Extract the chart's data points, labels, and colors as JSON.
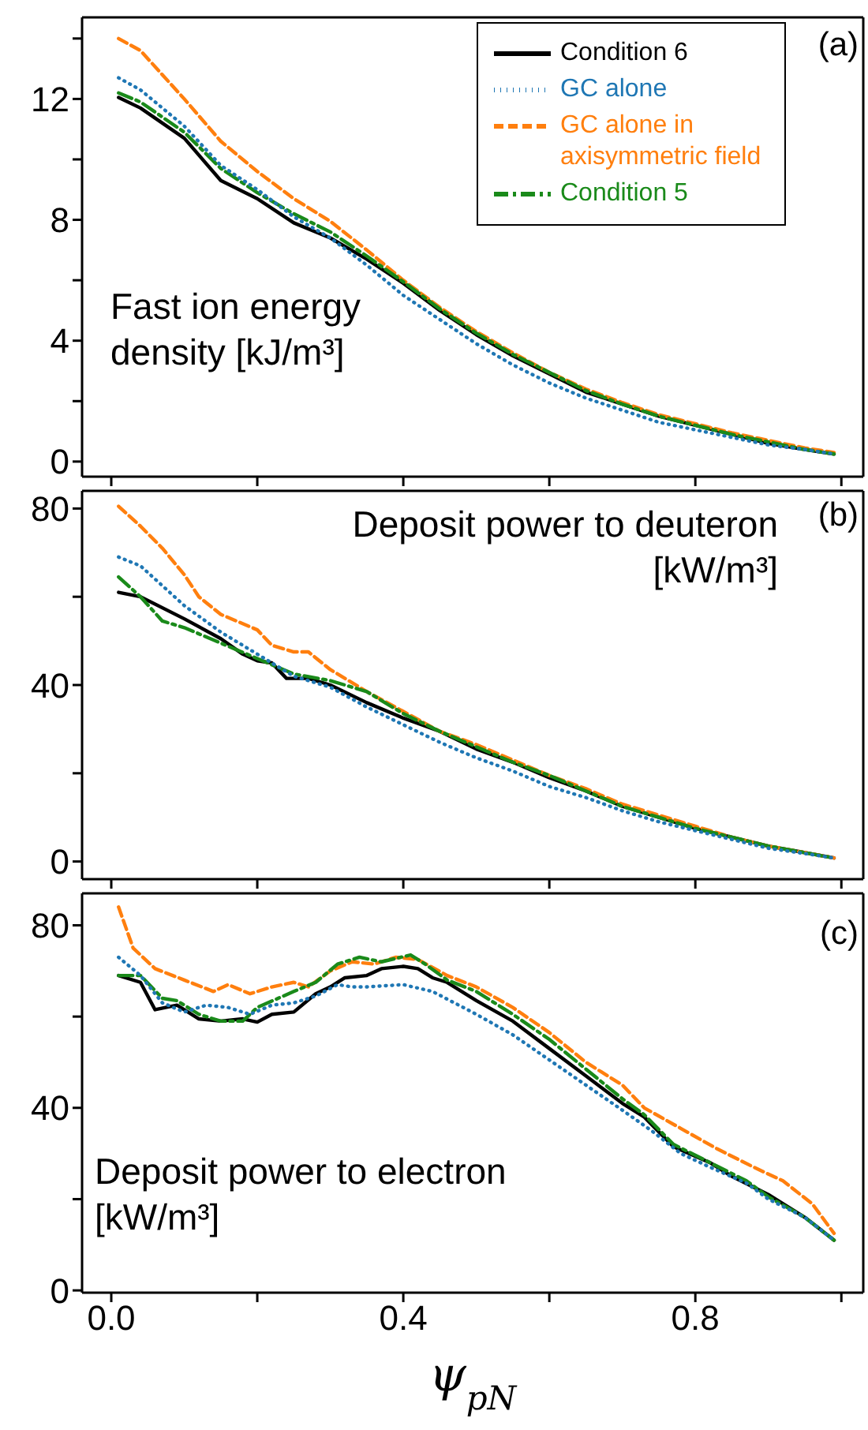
{
  "chart_data": [
    {
      "type": "line",
      "annotations": [
        "(a)",
        "Fast ion energy density [kJ/m³]"
      ],
      "xlim": [
        -0.04,
        1.03
      ],
      "ylim": [
        -0.5,
        14.7
      ],
      "xticks": [
        0,
        0.2,
        0.4,
        0.6,
        0.8,
        1.0
      ],
      "yticks": [
        0,
        {
          "value": 2,
          "label": null
        },
        4,
        {
          "value": 6,
          "label": null
        },
        8,
        {
          "value": 10,
          "label": null
        },
        12,
        {
          "value": 14,
          "label": null
        }
      ],
      "tick_labels": "y",
      "legend": "top right",
      "marker": "none",
      "x": [
        0.01,
        0.04,
        0.1,
        0.15,
        0.2,
        0.25,
        0.3,
        0.35,
        0.4,
        0.45,
        0.5,
        0.55,
        0.6,
        0.65,
        0.7,
        0.75,
        0.8,
        0.85,
        0.9,
        0.95,
        0.99
      ],
      "series": [
        {
          "name": "Condition 6",
          "color": "#000000",
          "line_style": "solid",
          "values": [
            12.05,
            11.7,
            10.7,
            9.3,
            8.7,
            7.9,
            7.4,
            6.7,
            5.9,
            5.0,
            4.2,
            3.5,
            2.9,
            2.3,
            1.9,
            1.5,
            1.2,
            0.9,
            0.6,
            0.4,
            0.25
          ]
        },
        {
          "name": "GC alone",
          "color": "#1f77b4",
          "line_style": "dotted",
          "values": [
            12.7,
            12.3,
            11.1,
            9.8,
            9.0,
            8.1,
            7.4,
            6.5,
            5.5,
            4.7,
            3.9,
            3.2,
            2.6,
            2.1,
            1.7,
            1.3,
            1.05,
            0.8,
            0.55,
            0.4,
            0.25
          ]
        },
        {
          "name": "GC alone in axisymmetric field",
          "color": "#ff7f0e",
          "line_style": "dashed",
          "values": [
            14.0,
            13.6,
            12.0,
            10.6,
            9.6,
            8.7,
            7.95,
            7.0,
            6.0,
            5.1,
            4.3,
            3.6,
            2.95,
            2.4,
            1.95,
            1.55,
            1.25,
            0.95,
            0.7,
            0.45,
            0.3
          ]
        },
        {
          "name": "Condition 5",
          "color": "#1a8a1a",
          "line_style": "dashdot",
          "values": [
            12.2,
            11.9,
            10.9,
            9.7,
            8.9,
            8.2,
            7.6,
            6.8,
            5.95,
            5.05,
            4.25,
            3.55,
            2.95,
            2.35,
            1.9,
            1.5,
            1.2,
            0.9,
            0.65,
            0.4,
            0.25
          ]
        }
      ]
    },
    {
      "type": "line",
      "annotations": [
        "(b)",
        "Deposit power to deuteron [kW/m³]"
      ],
      "xlim": [
        -0.04,
        1.03
      ],
      "ylim": [
        -4,
        84
      ],
      "xticks": [
        0,
        0.2,
        0.4,
        0.6,
        0.8,
        1.0
      ],
      "yticks": [
        0,
        {
          "value": 20,
          "label": null
        },
        40,
        {
          "value": 60,
          "label": null
        },
        80
      ],
      "tick_labels": "y",
      "marker": "none",
      "series": [
        {
          "color": "#000000",
          "line_style": "solid",
          "x": [
            0.01,
            0.04,
            0.1,
            0.15,
            0.18,
            0.2,
            0.22,
            0.24,
            0.27,
            0.3,
            0.35,
            0.4,
            0.45,
            0.5,
            0.55,
            0.6,
            0.65,
            0.7,
            0.75,
            0.8,
            0.85,
            0.9,
            0.95,
            0.99
          ],
          "values": [
            61,
            60,
            55,
            50.5,
            47,
            45.5,
            45,
            41.5,
            41.5,
            40,
            36,
            32.5,
            29.5,
            25.5,
            22.5,
            19,
            16,
            12.5,
            10,
            7.5,
            5.5,
            3.5,
            2,
            0.8
          ]
        },
        {
          "color": "#1f77b4",
          "line_style": "dotted",
          "x": [
            0.01,
            0.04,
            0.1,
            0.15,
            0.2,
            0.25,
            0.3,
            0.35,
            0.4,
            0.45,
            0.5,
            0.55,
            0.6,
            0.65,
            0.7,
            0.75,
            0.8,
            0.85,
            0.9,
            0.95,
            0.99
          ],
          "values": [
            69,
            67,
            58,
            52,
            47,
            42,
            39.5,
            35,
            31,
            27,
            23.5,
            20.5,
            17,
            14.5,
            11.5,
            9,
            7,
            5,
            3,
            1.8,
            0.8
          ]
        },
        {
          "color": "#ff7f0e",
          "line_style": "dashed",
          "x": [
            0.01,
            0.04,
            0.07,
            0.1,
            0.12,
            0.15,
            0.2,
            0.22,
            0.25,
            0.27,
            0.3,
            0.35,
            0.4,
            0.45,
            0.5,
            0.55,
            0.6,
            0.65,
            0.7,
            0.75,
            0.8,
            0.85,
            0.9,
            0.95,
            0.99
          ],
          "values": [
            80.5,
            76,
            71,
            65,
            60,
            56,
            52.5,
            49,
            47.5,
            47.5,
            43.5,
            38.5,
            34,
            29.5,
            26.5,
            23,
            19.5,
            16.5,
            13,
            10.5,
            8,
            5.5,
            3.5,
            2,
            0.8
          ]
        },
        {
          "color": "#1a8a1a",
          "line_style": "dashdot",
          "x": [
            0.01,
            0.04,
            0.07,
            0.1,
            0.15,
            0.2,
            0.25,
            0.3,
            0.35,
            0.4,
            0.45,
            0.5,
            0.55,
            0.6,
            0.65,
            0.7,
            0.75,
            0.8,
            0.85,
            0.9,
            0.95,
            0.99
          ],
          "values": [
            64.5,
            60,
            54.5,
            53,
            49.5,
            46,
            42.5,
            41,
            38.5,
            33.5,
            29.5,
            26,
            22.5,
            19.5,
            16,
            12.5,
            10,
            7.5,
            5.5,
            3.5,
            2,
            0.8
          ]
        }
      ]
    },
    {
      "type": "line",
      "annotations": [
        "(c)",
        "Deposit power to electron [kW/m³]"
      ],
      "xlabel": "ψ$_{pN}$",
      "xlim": [
        -0.04,
        1.03
      ],
      "ylim": [
        -0.5,
        87
      ],
      "xticks": [
        {
          "value": 0,
          "label": "0.0"
        },
        {
          "value": 0.2,
          "label": null
        },
        {
          "value": 0.4,
          "label": "0.4"
        },
        {
          "value": 0.6,
          "label": null
        },
        {
          "value": 0.8,
          "label": "0.8"
        },
        {
          "value": 1.0,
          "label": null
        }
      ],
      "yticks": [
        0,
        {
          "value": 20,
          "label": null
        },
        40,
        {
          "value": 60,
          "label": null
        },
        80
      ],
      "marker": "none",
      "series": [
        {
          "color": "#000000",
          "line_style": "solid",
          "x": [
            0.01,
            0.04,
            0.06,
            0.09,
            0.12,
            0.15,
            0.18,
            0.2,
            0.22,
            0.25,
            0.28,
            0.3,
            0.32,
            0.35,
            0.37,
            0.4,
            0.42,
            0.44,
            0.46,
            0.5,
            0.55,
            0.6,
            0.65,
            0.7,
            0.73,
            0.77,
            0.82,
            0.85,
            0.9,
            0.95,
            0.99
          ],
          "values": [
            69,
            67.5,
            61.5,
            62.5,
            59.5,
            59,
            59.5,
            58.8,
            60.5,
            61,
            65,
            66.5,
            68.5,
            69,
            70.5,
            71,
            70.5,
            68.5,
            67.5,
            63.5,
            59,
            53,
            47,
            41,
            38,
            31.5,
            28,
            25,
            21,
            16,
            11
          ]
        },
        {
          "color": "#1f77b4",
          "line_style": "dotted",
          "x": [
            0.01,
            0.04,
            0.07,
            0.1,
            0.13,
            0.16,
            0.19,
            0.22,
            0.25,
            0.28,
            0.31,
            0.33,
            0.35,
            0.4,
            0.44,
            0.47,
            0.5,
            0.55,
            0.6,
            0.65,
            0.7,
            0.74,
            0.78,
            0.82,
            0.87,
            0.9,
            0.95,
            0.99
          ],
          "values": [
            73,
            69,
            63,
            61,
            62.5,
            62,
            60.5,
            62.5,
            63,
            64.5,
            67,
            66.5,
            66.5,
            67,
            65.5,
            63,
            60.5,
            56,
            50.5,
            45,
            39.5,
            35,
            30,
            27,
            23.5,
            20,
            16,
            11
          ]
        },
        {
          "color": "#ff7f0e",
          "line_style": "dashed",
          "x": [
            0.01,
            0.03,
            0.06,
            0.1,
            0.14,
            0.16,
            0.19,
            0.22,
            0.25,
            0.27,
            0.3,
            0.33,
            0.36,
            0.39,
            0.42,
            0.46,
            0.5,
            0.55,
            0.6,
            0.65,
            0.7,
            0.73,
            0.78,
            0.83,
            0.88,
            0.92,
            0.96,
            0.99
          ],
          "values": [
            84,
            75,
            70.5,
            68,
            65.5,
            67,
            65,
            66.5,
            67.5,
            66.5,
            70,
            72,
            71.5,
            73,
            72.5,
            69,
            66.5,
            62,
            56.5,
            50,
            45,
            40,
            35.5,
            31,
            27,
            24,
            19,
            12.5
          ]
        },
        {
          "color": "#1a8a1a",
          "line_style": "dashdot",
          "x": [
            0.01,
            0.04,
            0.07,
            0.09,
            0.12,
            0.15,
            0.18,
            0.2,
            0.25,
            0.28,
            0.31,
            0.34,
            0.37,
            0.41,
            0.43,
            0.46,
            0.5,
            0.55,
            0.6,
            0.65,
            0.7,
            0.73,
            0.77,
            0.82,
            0.87,
            0.9,
            0.95,
            0.99
          ],
          "values": [
            69,
            69,
            64,
            63.5,
            60.5,
            59,
            59,
            62,
            65.5,
            67.5,
            71.5,
            73,
            72,
            73.5,
            71.5,
            68,
            65.5,
            60.5,
            55,
            48.5,
            42,
            38.5,
            32,
            28,
            24,
            20.5,
            16,
            11
          ]
        }
      ]
    }
  ]
}
